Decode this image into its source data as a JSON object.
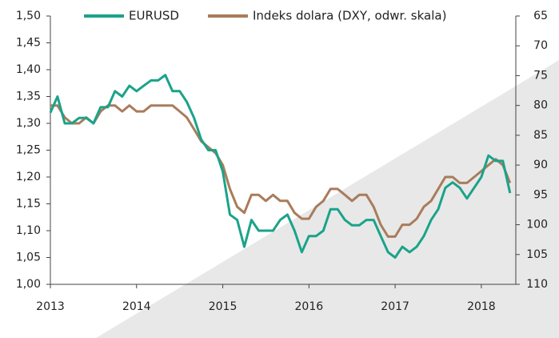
{
  "chart_data": {
    "type": "line",
    "x": [
      2013,
      2013.083,
      2013.167,
      2013.25,
      2013.333,
      2013.417,
      2013.5,
      2013.583,
      2013.667,
      2013.75,
      2013.833,
      2013.917,
      2014,
      2014.083,
      2014.167,
      2014.25,
      2014.333,
      2014.417,
      2014.5,
      2014.583,
      2014.667,
      2014.75,
      2014.833,
      2014.917,
      2015,
      2015.083,
      2015.167,
      2015.25,
      2015.333,
      2015.417,
      2015.5,
      2015.583,
      2015.667,
      2015.75,
      2015.833,
      2015.917,
      2016,
      2016.083,
      2016.167,
      2016.25,
      2016.333,
      2016.417,
      2016.5,
      2016.583,
      2016.667,
      2016.75,
      2016.833,
      2016.917,
      2017,
      2017.083,
      2017.167,
      2017.25,
      2017.333,
      2017.417,
      2017.5,
      2017.583,
      2017.667,
      2017.75,
      2017.833,
      2017.917,
      2018,
      2018.083,
      2018.167,
      2018.25,
      2018.333
    ],
    "series": [
      {
        "name": "EURUSD",
        "color": "#1aa38a",
        "axis": "y",
        "values": [
          1.32,
          1.35,
          1.3,
          1.3,
          1.31,
          1.31,
          1.3,
          1.33,
          1.33,
          1.36,
          1.35,
          1.37,
          1.36,
          1.37,
          1.38,
          1.38,
          1.39,
          1.36,
          1.36,
          1.34,
          1.31,
          1.27,
          1.25,
          1.25,
          1.21,
          1.13,
          1.12,
          1.07,
          1.12,
          1.1,
          1.1,
          1.1,
          1.12,
          1.13,
          1.1,
          1.06,
          1.09,
          1.09,
          1.1,
          1.14,
          1.14,
          1.12,
          1.11,
          1.11,
          1.12,
          1.12,
          1.09,
          1.06,
          1.05,
          1.07,
          1.06,
          1.07,
          1.09,
          1.12,
          1.14,
          1.18,
          1.19,
          1.18,
          1.16,
          1.18,
          1.2,
          1.24,
          1.23,
          1.23,
          1.17
        ]
      },
      {
        "name": "Indeks dolara (DXY, odwr. skala)",
        "color": "#a97c5b",
        "axis": "y2",
        "values": [
          80,
          80,
          82,
          83,
          83,
          82,
          83,
          81,
          80,
          80,
          81,
          80,
          81,
          81,
          80,
          80,
          80,
          80,
          81,
          82,
          84,
          86,
          87,
          88,
          90,
          94,
          97,
          98,
          95,
          95,
          96,
          95,
          96,
          96,
          98,
          99,
          99,
          97,
          96,
          94,
          94,
          95,
          96,
          95,
          95,
          97,
          100,
          102,
          102,
          100,
          100,
          99,
          97,
          96,
          94,
          92,
          92,
          93,
          93,
          92,
          91,
          90,
          89,
          90,
          93
        ]
      }
    ],
    "xlim": [
      2013,
      2018.4
    ],
    "xticks": [
      2013,
      2014,
      2015,
      2016,
      2017,
      2018
    ],
    "ylim": [
      1.0,
      1.5
    ],
    "yticks": [
      {
        "value": 1.0,
        "label": "1,00"
      },
      {
        "value": 1.05,
        "label": "1,05"
      },
      {
        "value": 1.1,
        "label": "1,10"
      },
      {
        "value": 1.15,
        "label": "1,15"
      },
      {
        "value": 1.2,
        "label": "1,20"
      },
      {
        "value": 1.25,
        "label": "1,25"
      },
      {
        "value": 1.3,
        "label": "1,30"
      },
      {
        "value": 1.35,
        "label": "1,35"
      },
      {
        "value": 1.4,
        "label": "1,40"
      },
      {
        "value": 1.45,
        "label": "1,45"
      },
      {
        "value": 1.5,
        "label": "1,50"
      }
    ],
    "y2lim": [
      110,
      65
    ],
    "y2ticks": [
      110,
      105,
      100,
      95,
      90,
      85,
      80,
      75,
      70,
      65
    ]
  }
}
